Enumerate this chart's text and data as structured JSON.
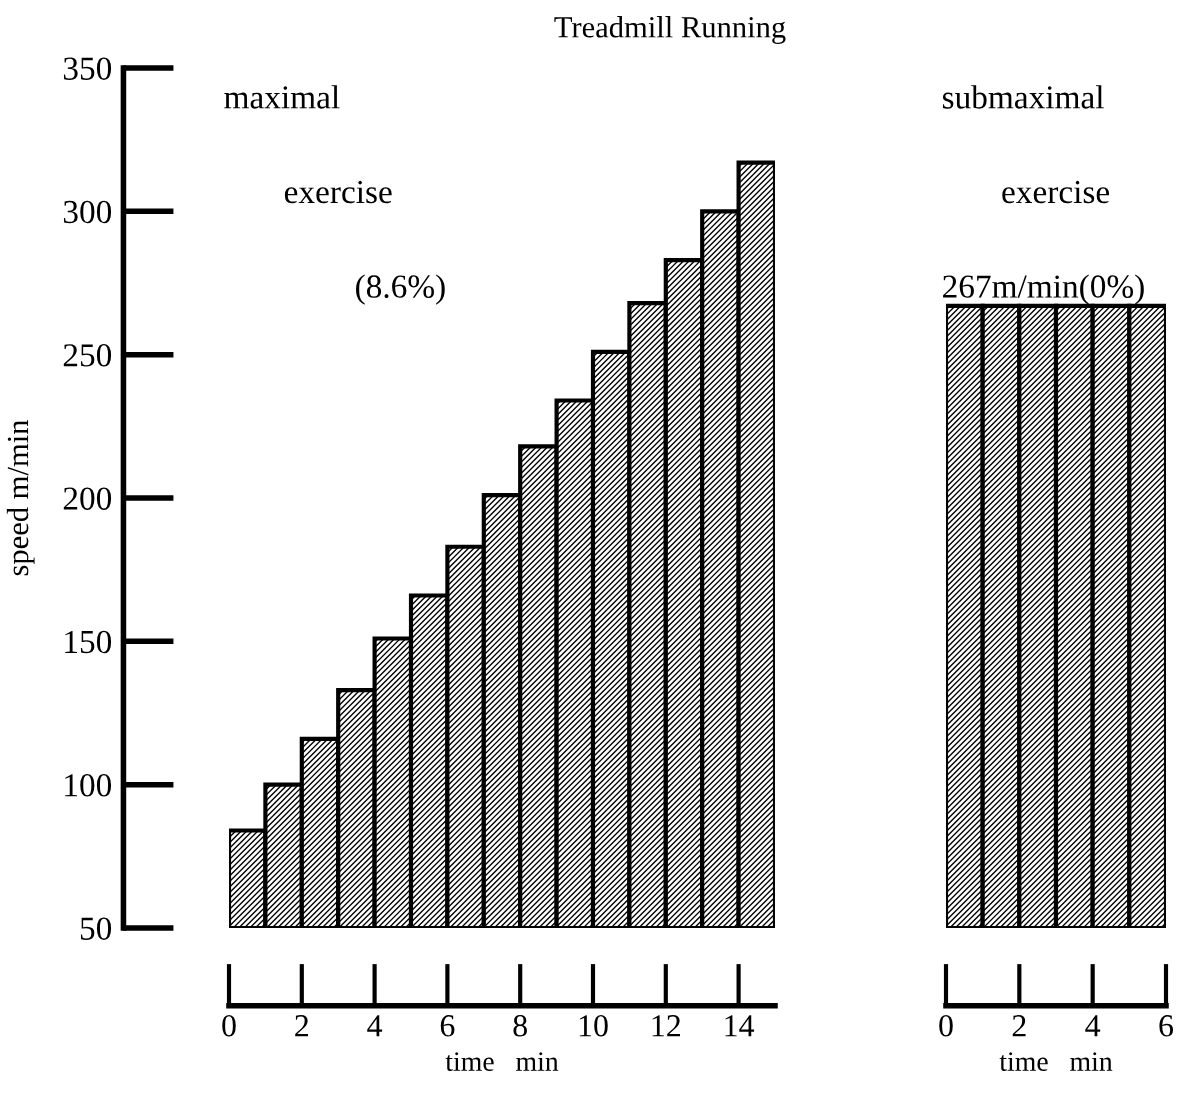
{
  "chart_data": [
    {
      "type": "bar",
      "title": "Treadmill Running",
      "ylabel": "speed m/min",
      "xlabel": "time   min",
      "x": [
        0.5,
        1.5,
        2.5,
        3.5,
        4.5,
        5.5,
        6.5,
        7.5,
        8.5,
        9.5,
        10.5,
        11.5,
        12.5,
        13.5,
        14.5
      ],
      "values": [
        84,
        100,
        116,
        133,
        151,
        166,
        183,
        201,
        218,
        234,
        251,
        268,
        283,
        300,
        317
      ],
      "xlim": [
        0,
        15
      ],
      "xticks": [
        0,
        2,
        4,
        6,
        8,
        10,
        12,
        14
      ],
      "ylim": [
        50,
        350
      ],
      "yticks": [
        50,
        100,
        150,
        200,
        250,
        300,
        350
      ],
      "annotations": [
        "maximal",
        "exercise",
        "(8.6%)"
      ]
    },
    {
      "type": "bar",
      "xlabel": "time   min",
      "x": [
        0.5,
        1.5,
        2.5,
        3.5,
        4.5,
        5.5
      ],
      "values": [
        267,
        267,
        267,
        267,
        267,
        267
      ],
      "xlim": [
        0,
        6
      ],
      "xticks": [
        0,
        2,
        4,
        6
      ],
      "ylim": [
        50,
        350
      ],
      "tick_labels": "x",
      "annotations": [
        "submaximal",
        "exercise",
        "267m/min(0%)"
      ]
    }
  ]
}
